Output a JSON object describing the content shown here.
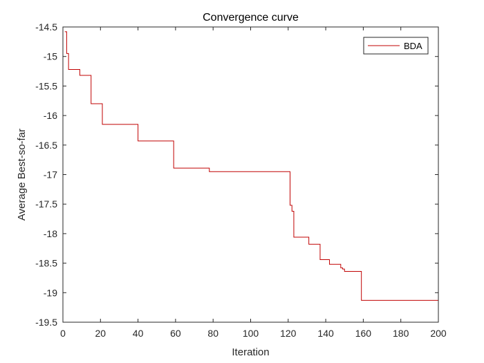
{
  "chart_data": {
    "type": "line",
    "title": "Convergence curve",
    "xlabel": "Iteration",
    "ylabel": "Average Best-so-far",
    "xlim": [
      0,
      200
    ],
    "ylim": [
      -19.5,
      -14.5
    ],
    "xticks": [
      0,
      20,
      40,
      60,
      80,
      100,
      120,
      140,
      160,
      180,
      200
    ],
    "yticks": [
      -19.5,
      -19,
      -18.5,
      -18,
      -17.5,
      -17,
      -16.5,
      -16,
      -15.5,
      -15,
      -14.5
    ],
    "xtick_labels": [
      "0",
      "20",
      "40",
      "60",
      "80",
      "100",
      "120",
      "140",
      "160",
      "180",
      "200"
    ],
    "ytick_labels": [
      "-19.5",
      "-19",
      "-18.5",
      "-18",
      "-17.5",
      "-17",
      "-16.5",
      "-16",
      "-15.5",
      "-15",
      "-14.5"
    ],
    "grid": false,
    "legend": {
      "placement": "top-right",
      "entries": [
        "BDA"
      ]
    },
    "series": [
      {
        "name": "BDA",
        "color": "#c00000",
        "step": "post",
        "x": [
          1,
          2,
          3,
          8,
          9,
          14,
          15,
          20,
          21,
          39,
          40,
          58,
          59,
          77,
          78,
          120,
          121,
          122,
          123,
          130,
          131,
          136,
          137,
          141,
          142,
          147,
          148,
          149,
          150,
          158,
          159,
          200
        ],
        "y": [
          -14.58,
          -14.95,
          -15.22,
          -15.22,
          -15.32,
          -15.32,
          -15.8,
          -15.8,
          -16.15,
          -16.15,
          -16.43,
          -16.43,
          -16.89,
          -16.89,
          -16.95,
          -16.95,
          -17.52,
          -17.62,
          -18.06,
          -18.06,
          -18.18,
          -18.18,
          -18.44,
          -18.44,
          -18.52,
          -18.52,
          -18.58,
          -18.6,
          -18.64,
          -18.64,
          -19.13,
          -19.13
        ]
      }
    ]
  }
}
